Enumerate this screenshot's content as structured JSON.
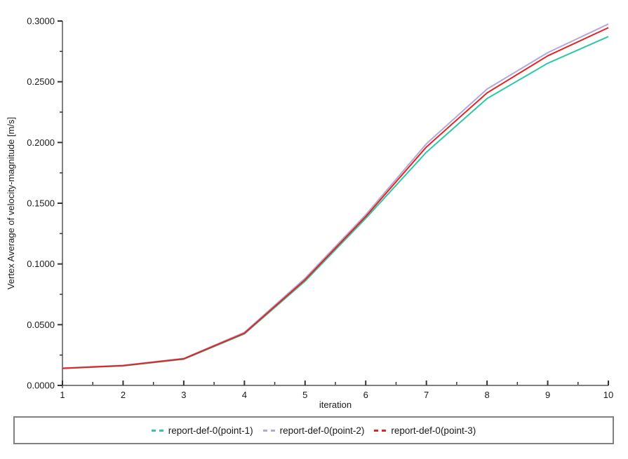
{
  "colors": {
    "background": "#ffffff",
    "axis_line": "#808080",
    "tick_mark": "#333333",
    "tick_label": "#1a1a1a",
    "axis_title": "#1a1a1a",
    "legend_border": "#808080"
  },
  "chart_data": {
    "type": "line",
    "title": "",
    "xlabel": "iteration",
    "ylabel": "Vertex Average of velocity-magnitude [m/s]",
    "x": [
      1,
      2,
      3,
      4,
      5,
      6,
      7,
      8,
      9,
      10
    ],
    "xlim": [
      1,
      10
    ],
    "ylim": [
      0.0,
      0.3
    ],
    "x_major_step": 1,
    "x_minor_step": 0.5,
    "y_major_step": 0.05,
    "y_minor_step": 0.025,
    "y_tick_decimals": 4,
    "grid": false,
    "legend_position": "bottom",
    "series": [
      {
        "name": "report-def-0(point-1)",
        "color": "#2fc7a5",
        "values": [
          0.014,
          0.0161,
          0.0216,
          0.0424,
          0.0858,
          0.1375,
          0.192,
          0.2362,
          0.2652,
          0.2872
        ]
      },
      {
        "name": "report-def-0(point-2)",
        "color": "#b3a8da",
        "values": [
          0.0143,
          0.0165,
          0.0222,
          0.0437,
          0.0882,
          0.1405,
          0.199,
          0.244,
          0.274,
          0.2975
        ]
      },
      {
        "name": "report-def-0(point-3)",
        "color": "#e6231e",
        "values": [
          0.0141,
          0.0163,
          0.0219,
          0.043,
          0.087,
          0.139,
          0.1963,
          0.2408,
          0.2713,
          0.2945
        ]
      }
    ]
  }
}
